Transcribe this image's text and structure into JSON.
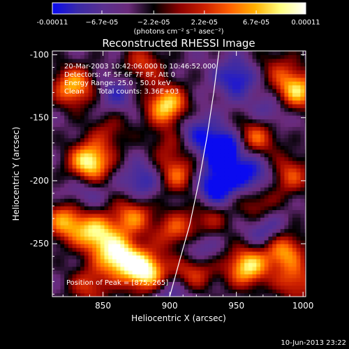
{
  "chart_data": {
    "type": "heatmap",
    "title": "Reconstructed RHESSI Image",
    "xlabel": "Heliocentric X (arcsec)",
    "ylabel": "Heliocentric Y (arcsec)",
    "xlim": [
      812,
      1002
    ],
    "ylim": [
      -292,
      -97
    ],
    "x_ticks": [
      850,
      900,
      950,
      1000
    ],
    "x_tick_labels": [
      "850",
      "900",
      "950",
      "1000"
    ],
    "y_ticks": [
      -100,
      -150,
      -200,
      -250
    ],
    "y_tick_labels": [
      "-100",
      "-150",
      "-200",
      "-250"
    ],
    "colorbar": {
      "range": [
        -0.00011,
        0.00011
      ],
      "tick_values": [
        -0.00011,
        -6.7e-05,
        -2.2e-05,
        2.2e-05,
        6.7e-05,
        0.00011
      ],
      "tick_labels": [
        "-0.00011",
        "−6.7e-05",
        "−2.2e-05",
        "2.2e-05",
        "6.7e-05",
        "0.00011"
      ],
      "unit_label": "(photons cm⁻² s⁻¹ asec⁻²)",
      "colors": [
        "#0a0af0",
        "#3a2aa8",
        "#5a3090",
        "#6a2a7a",
        "#000000",
        "#8a0000",
        "#cc2000",
        "#ff6000",
        "#ffb000",
        "#ffff80",
        "#ffffff"
      ]
    },
    "annotations": {
      "time_range": "20-Mar-2003 10:42:06.000 to 10:46:52.000",
      "detectors": "Detectors: 4F 5F 6F 7F 8F, Att 0",
      "energy_range": "Energy Range: 25.0 - 50.0 keV",
      "method": "Clean",
      "total_counts": "Total counts: 3.36E+03",
      "peak": "Position of Peak = [875,-265]"
    },
    "peak": [
      875,
      -265
    ],
    "blobs": [
      {
        "x": 828,
        "y": -125,
        "i": 0.75
      },
      {
        "x": 880,
        "y": -108,
        "i": 0.45
      },
      {
        "x": 898,
        "y": -140,
        "i": 0.85
      },
      {
        "x": 840,
        "y": -185,
        "i": 0.95
      },
      {
        "x": 855,
        "y": -160,
        "i": 0.3
      },
      {
        "x": 905,
        "y": -195,
        "i": 0.55
      },
      {
        "x": 900,
        "y": -170,
        "i": 0.3
      },
      {
        "x": 822,
        "y": -232,
        "i": 0.7
      },
      {
        "x": 845,
        "y": -242,
        "i": 0.8
      },
      {
        "x": 872,
        "y": -228,
        "i": 0.6
      },
      {
        "x": 862,
        "y": -260,
        "i": 0.95
      },
      {
        "x": 882,
        "y": -272,
        "i": 1.0
      },
      {
        "x": 905,
        "y": -240,
        "i": 0.55
      },
      {
        "x": 918,
        "y": -270,
        "i": 0.6
      },
      {
        "x": 840,
        "y": -283,
        "i": 0.45
      },
      {
        "x": 930,
        "y": -230,
        "i": 0.35
      },
      {
        "x": 958,
        "y": -268,
        "i": 0.85
      },
      {
        "x": 985,
        "y": -255,
        "i": 0.7
      },
      {
        "x": 995,
        "y": -280,
        "i": 0.5
      },
      {
        "x": 965,
        "y": -165,
        "i": 0.6
      },
      {
        "x": 990,
        "y": -195,
        "i": 0.5
      },
      {
        "x": 995,
        "y": -128,
        "i": 0.8
      },
      {
        "x": 980,
        "y": -110,
        "i": 0.3
      },
      {
        "x": 965,
        "y": -218,
        "i": 0.4
      },
      {
        "x": 940,
        "y": -175,
        "i": -0.75
      },
      {
        "x": 962,
        "y": -195,
        "i": -0.5
      },
      {
        "x": 935,
        "y": -205,
        "i": -0.6
      },
      {
        "x": 950,
        "y": -118,
        "i": -0.45
      },
      {
        "x": 918,
        "y": -160,
        "i": -0.35
      },
      {
        "x": 880,
        "y": -200,
        "i": -0.4
      },
      {
        "x": 860,
        "y": -130,
        "i": -0.3
      },
      {
        "x": 920,
        "y": -255,
        "i": -0.45
      },
      {
        "x": 972,
        "y": -240,
        "i": -0.4
      },
      {
        "x": 900,
        "y": -290,
        "i": -0.3
      },
      {
        "x": 835,
        "y": -210,
        "i": -0.25
      },
      {
        "x": 975,
        "y": -145,
        "i": -0.3
      }
    ],
    "limb": [
      [
        937,
        -97
      ],
      [
        933,
        -130
      ],
      [
        928,
        -165
      ],
      [
        922,
        -200
      ],
      [
        915,
        -235
      ],
      [
        907,
        -265
      ],
      [
        900,
        -292
      ]
    ]
  },
  "footer": {
    "timestamp": "10-Jun-2013 23:22"
  }
}
